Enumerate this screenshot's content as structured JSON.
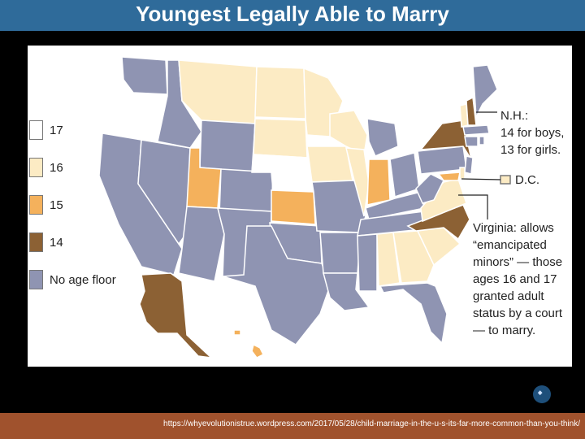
{
  "title": "Youngest Legally Able to Marry",
  "colors": {
    "17": "#ffffff",
    "16": "#fcebc4",
    "15": "#f4b15c",
    "14": "#8c6134",
    "none": "#8f94b2"
  },
  "legend": [
    {
      "label": "17",
      "color": "#ffffff"
    },
    {
      "label": "16",
      "color": "#fcebc4"
    },
    {
      "label": "15",
      "color": "#f4b15c"
    },
    {
      "label": "14",
      "color": "#8c6134"
    },
    {
      "label": "No age floor",
      "color": "#8f94b2"
    }
  ],
  "annotations": {
    "nh_lines": [
      "N.H.:",
      "14 for boys,",
      "13 for girls."
    ],
    "dc": "D.C.",
    "virginia_lines": [
      "Virginia: allows",
      "“emancipated",
      "minors” — those",
      "ages 16 and 17",
      "granted adult",
      "status by a court",
      "— to marry."
    ]
  },
  "source_url": "https://whyevolutionistrue.wordpress.com/2017/05/28/child-marriage-in-the-u-s-its-far-more-common-than-you-think/"
}
